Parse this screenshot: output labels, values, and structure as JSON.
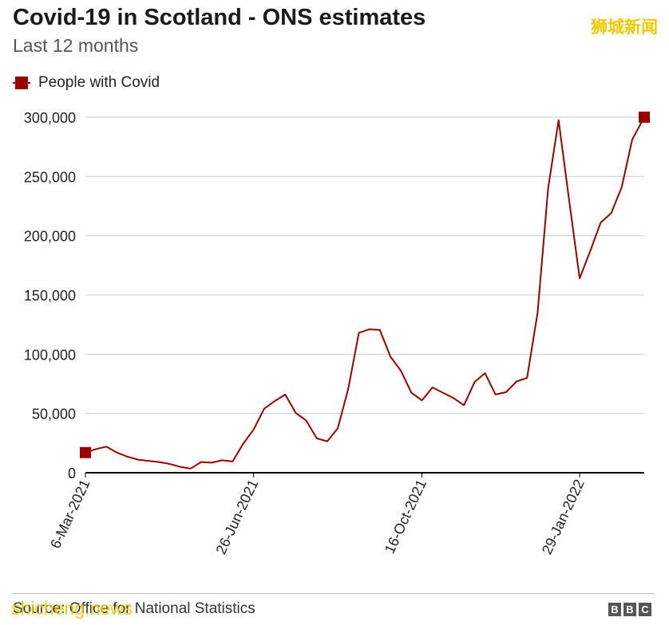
{
  "header": {
    "title": "Covid-19 in Scotland - ONS estimates",
    "subtitle": "Last 12 months",
    "watermark": "狮城新闻"
  },
  "legend": {
    "label": "People with Covid"
  },
  "footer": {
    "source": "Source: Office for National Statistics",
    "source_watermark": "shicheng.news",
    "logo_letters": [
      "B",
      "B",
      "C"
    ]
  },
  "colors": {
    "series": "#990000",
    "grid": "#cccccc",
    "axis": "#000000"
  },
  "chart_data": {
    "type": "line",
    "title": "Covid-19 in Scotland - ONS estimates",
    "subtitle": "Last 12 months",
    "xlabel": "",
    "ylabel": "",
    "ylim": [
      0,
      300000
    ],
    "yticks": [
      0,
      50000,
      100000,
      150000,
      200000,
      250000,
      300000
    ],
    "ytick_labels": [
      "0",
      "50,000",
      "100,000",
      "150,000",
      "200,000",
      "250,000",
      "300,000"
    ],
    "xlim": [
      "2021-03-06",
      "2022-03-13"
    ],
    "xticks": [
      "2021-03-06",
      "2021-06-26",
      "2021-10-16",
      "2022-01-29"
    ],
    "xtick_labels": [
      "6-Mar-2021",
      "26-Jun-2021",
      "16-Oct-2021",
      "29-Jan-2022"
    ],
    "grid": true,
    "legend_position": "top-left",
    "series": [
      {
        "name": "People with Covid",
        "color": "#990000",
        "marker": "square-at-endpoints",
        "x": [
          "2021-03-06",
          "2021-03-13",
          "2021-03-20",
          "2021-03-27",
          "2021-04-03",
          "2021-04-10",
          "2021-04-17",
          "2021-04-24",
          "2021-05-01",
          "2021-05-08",
          "2021-05-15",
          "2021-05-22",
          "2021-05-29",
          "2021-06-05",
          "2021-06-12",
          "2021-06-19",
          "2021-06-26",
          "2021-07-03",
          "2021-07-10",
          "2021-07-17",
          "2021-07-24",
          "2021-07-31",
          "2021-08-07",
          "2021-08-14",
          "2021-08-21",
          "2021-08-28",
          "2021-09-04",
          "2021-09-11",
          "2021-09-18",
          "2021-09-25",
          "2021-10-02",
          "2021-10-09",
          "2021-10-16",
          "2021-10-23",
          "2021-10-30",
          "2021-11-06",
          "2021-11-13",
          "2021-11-20",
          "2021-11-27",
          "2021-12-04",
          "2021-12-11",
          "2021-12-18",
          "2021-12-25",
          "2022-01-01",
          "2022-01-08",
          "2022-01-15",
          "2022-01-22",
          "2022-01-29",
          "2022-02-05",
          "2022-02-12",
          "2022-02-19",
          "2022-02-26",
          "2022-03-05",
          "2022-03-13"
        ],
        "y": [
          17000,
          20000,
          22000,
          17000,
          13500,
          11000,
          10000,
          9000,
          7500,
          5000,
          3500,
          9000,
          8500,
          10500,
          9500,
          24500,
          36500,
          54000,
          60500,
          66000,
          50500,
          44000,
          29000,
          26500,
          37500,
          71000,
          118000,
          121000,
          120500,
          98000,
          86000,
          67500,
          61000,
          72000,
          67500,
          63000,
          57000,
          76500,
          84000,
          66000,
          68000,
          77000,
          80000,
          135000,
          240000,
          297500,
          230000,
          164000,
          187000,
          211000,
          219000,
          241000,
          281000,
          300000
        ]
      }
    ]
  }
}
